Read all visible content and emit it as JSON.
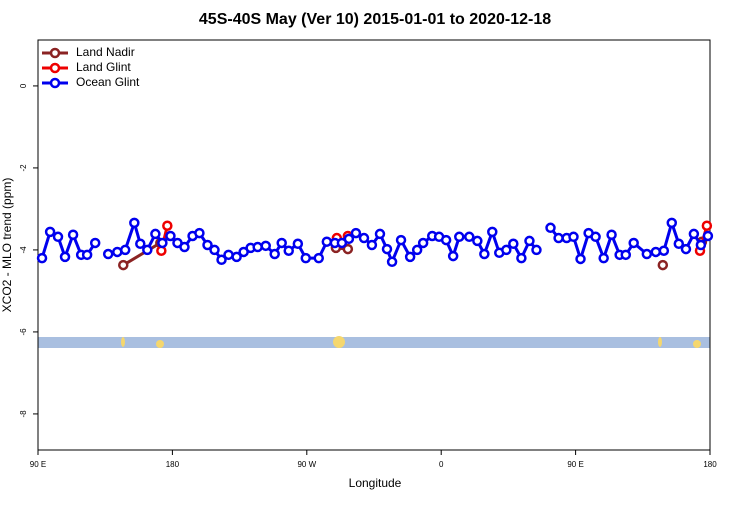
{
  "chart_data": {
    "type": "line",
    "title": "45S-40S May (Ver 10)   2015-01-01 to 2020-12-18",
    "xlabel": "Longitude",
    "ylabel": "XCO2 - MLO trend (ppm)",
    "xlim": [
      90,
      540
    ],
    "xticks": [
      {
        "value": 90,
        "label": "90 E"
      },
      {
        "value": 180,
        "label": "180"
      },
      {
        "value": 270,
        "label": "90 W"
      },
      {
        "value": 360,
        "label": "0"
      },
      {
        "value": 450,
        "label": "90 E"
      },
      {
        "value": 540,
        "label": "180"
      }
    ],
    "ylim": [
      -8.88,
      1.12
    ],
    "yticks": [
      0,
      -2,
      -4,
      -6,
      -8
    ],
    "legend": "top-left",
    "series": [
      {
        "name": "Land Nadir",
        "color": "#8b2323",
        "x": [
          147.1,
          171.9,
          250,
          289.5,
          297.5,
          400,
          508.4,
          520,
          534.6
        ],
        "values": [
          -4.37,
          -3.83,
          null,
          -3.95,
          -3.98,
          null,
          -4.37,
          null,
          -3.8
        ]
      },
      {
        "name": "Land Glint",
        "color": "#ee0000",
        "x": [
          172.6,
          176.6,
          250,
          290.1,
          293.5,
          297.5,
          400,
          533.3,
          537.9
        ],
        "values": [
          -4.02,
          -3.41,
          null,
          -3.71,
          -3.83,
          -3.66,
          null,
          -4.02,
          -3.41
        ]
      },
      {
        "name": "Ocean Glint",
        "color": "#0000ee",
        "x": [
          92.7,
          98.1,
          103.4,
          108.1,
          113.5,
          118.9,
          122.9,
          128.3,
          131,
          137.0,
          143.1,
          148.4,
          154.5,
          158.5,
          163.2,
          168.6,
          173.3,
          178.7,
          183.4,
          188.1,
          193.5,
          198.1,
          203.5,
          208.2,
          212.9,
          217.6,
          223.0,
          227.7,
          232.4,
          237.1,
          242.5,
          248.5,
          253.2,
          257.9,
          264.0,
          269.3,
          278.0,
          283.4,
          288.8,
          293.5,
          298.2,
          302.9,
          308.3,
          313.6,
          319.0,
          323.7,
          327.1,
          333.1,
          339.2,
          343.9,
          347.9,
          354.0,
          358.6,
          363.3,
          368.0,
          372.1,
          378.8,
          384.2,
          388.9,
          394.2,
          398.9,
          403.6,
          408.3,
          413.7,
          419.1,
          423.8,
          430,
          433.2,
          438.6,
          444.0,
          448.6,
          453.3,
          458.7,
          463.4,
          468.8,
          474.1,
          479.5,
          483.6,
          488.9,
          497.7,
          503.7,
          509.1,
          514.4,
          519.1,
          523.9,
          529.2,
          533.9,
          538.6
        ],
        "values": [
          -4.2,
          -3.56,
          -3.68,
          -4.17,
          -3.63,
          -4.12,
          -4.12,
          -3.83,
          null,
          -4.1,
          -4.05,
          -4.0,
          -3.34,
          -3.85,
          -4.0,
          -3.61,
          -3.83,
          -3.66,
          -3.83,
          -3.93,
          -3.66,
          -3.59,
          -3.88,
          -4.0,
          -4.24,
          -4.12,
          -4.17,
          -4.05,
          -3.95,
          -3.93,
          -3.9,
          -4.1,
          -3.83,
          -4.02,
          -3.85,
          -4.2,
          -4.2,
          -3.8,
          -3.83,
          -3.83,
          -3.73,
          -3.59,
          -3.71,
          -3.88,
          -3.61,
          -3.98,
          -4.29,
          -3.76,
          -4.17,
          -4.0,
          -3.83,
          -3.66,
          -3.68,
          -3.76,
          -4.15,
          -3.68,
          -3.68,
          -3.78,
          -4.1,
          -3.56,
          -4.07,
          -4.0,
          -3.85,
          -4.2,
          -3.78,
          -4.0,
          null,
          -3.46,
          -3.71,
          -3.71,
          -3.68,
          -4.22,
          -3.59,
          -3.68,
          -4.2,
          -3.63,
          -4.12,
          -4.12,
          -3.83,
          -4.1,
          -4.05,
          -4.02,
          -3.34,
          -3.85,
          -3.98,
          -3.61,
          -3.88,
          -3.66
        ]
      }
    ]
  }
}
